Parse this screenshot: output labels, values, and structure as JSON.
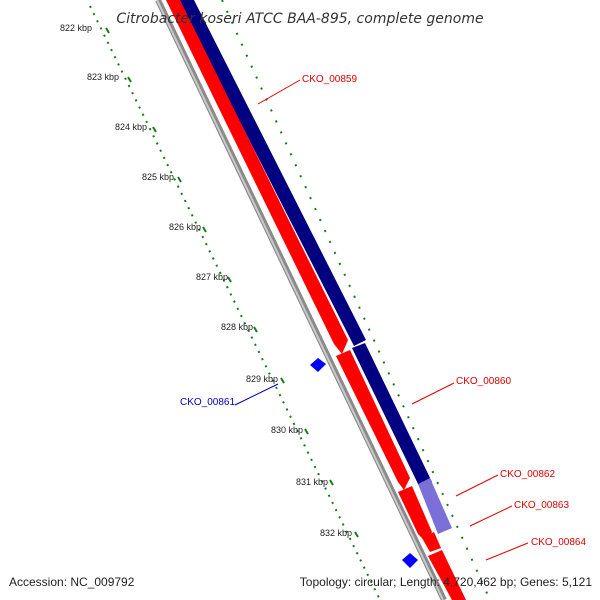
{
  "title": "Citrobacter koseri ATCC BAA-895, complete genome",
  "accession": "Accession: NC_009792",
  "topology": "Topology: circular; Length: 4,720,462 bp; Genes: 5,121",
  "ruler": [
    {
      "label": "822 kbp"
    },
    {
      "label": "823 kbp"
    },
    {
      "label": "824 kbp"
    },
    {
      "label": "825 kbp"
    },
    {
      "label": "826 kbp"
    },
    {
      "label": "827 kbp"
    },
    {
      "label": "828 kbp"
    },
    {
      "label": "829 kbp"
    },
    {
      "label": "830 kbp"
    },
    {
      "label": "831 kbp"
    },
    {
      "label": "832 kbp"
    }
  ],
  "genes": [
    {
      "name": "CKO_00859",
      "color": "#e00000"
    },
    {
      "name": "CKO_00860",
      "color": "#e00000"
    },
    {
      "name": "CKO_00861",
      "color": "#0000c0"
    },
    {
      "name": "CKO_00862",
      "color": "#e00000"
    },
    {
      "name": "CKO_00863",
      "color": "#e00000"
    },
    {
      "name": "CKO_00864",
      "color": "#e00000"
    }
  ],
  "colors": {
    "forward_strand": "#ff0000",
    "reverse_strand": "#000080",
    "reverse_strand_light": "#7a70d8",
    "backbone": "#999999",
    "tick": "#1a7a1a",
    "small_feature": "#0000ff"
  }
}
